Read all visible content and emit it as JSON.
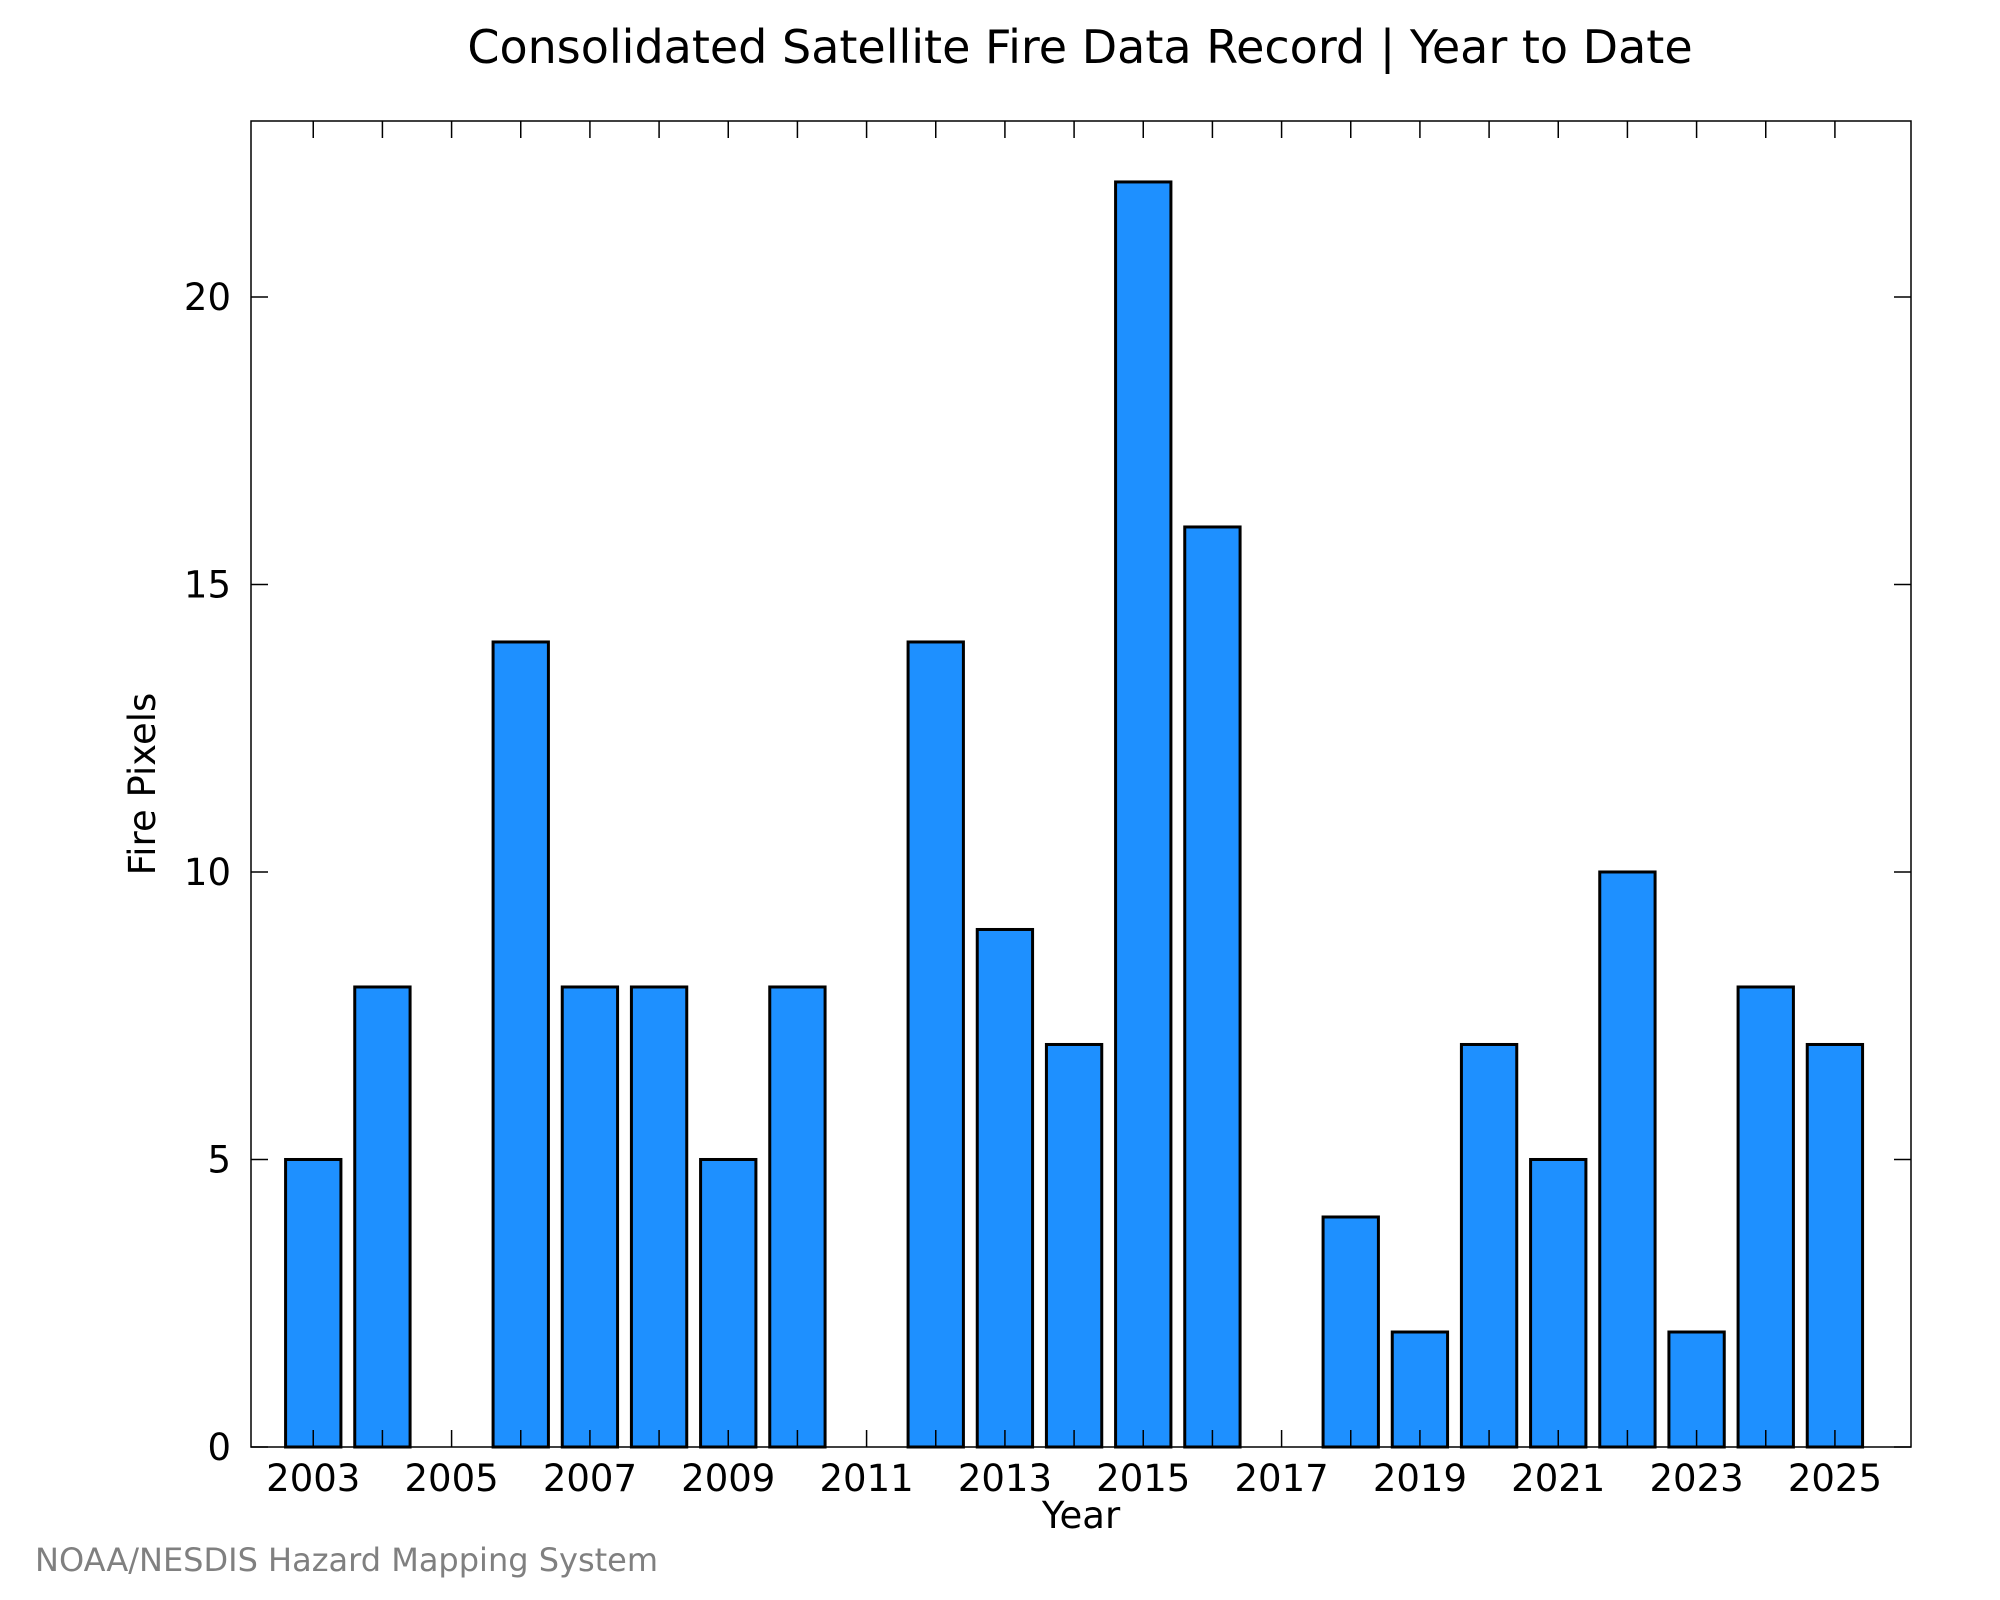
{
  "chart_data": {
    "type": "bar",
    "title": "Consolidated Satellite Fire Data Record | Year to Date",
    "xlabel": "Year",
    "ylabel": "Fire Pixels",
    "categories": [
      "2003",
      "2004",
      "2005",
      "2006",
      "2007",
      "2008",
      "2009",
      "2010",
      "2011",
      "2012",
      "2013",
      "2014",
      "2015",
      "2016",
      "2017",
      "2018",
      "2019",
      "2020",
      "2021",
      "2022",
      "2023",
      "2024",
      "2025"
    ],
    "values": [
      5,
      8,
      0,
      14,
      8,
      8,
      5,
      8,
      0,
      14,
      9,
      7,
      22,
      16,
      0,
      4,
      2,
      7,
      5,
      10,
      2,
      8,
      7
    ],
    "x_tick_labels": [
      "2003",
      "2005",
      "2007",
      "2009",
      "2011",
      "2013",
      "2015",
      "2017",
      "2019",
      "2021",
      "2023",
      "2025"
    ],
    "y_ticks": [
      0,
      5,
      10,
      15,
      20
    ],
    "ylim": [
      0,
      23.06
    ],
    "xlim": [
      2002.1,
      2026.1
    ],
    "grid": false,
    "legend": "none",
    "bar_color": "#1e90ff",
    "edge_color": "#000000"
  },
  "footer": {
    "credit": "NOAA/NESDIS Hazard Mapping System"
  }
}
